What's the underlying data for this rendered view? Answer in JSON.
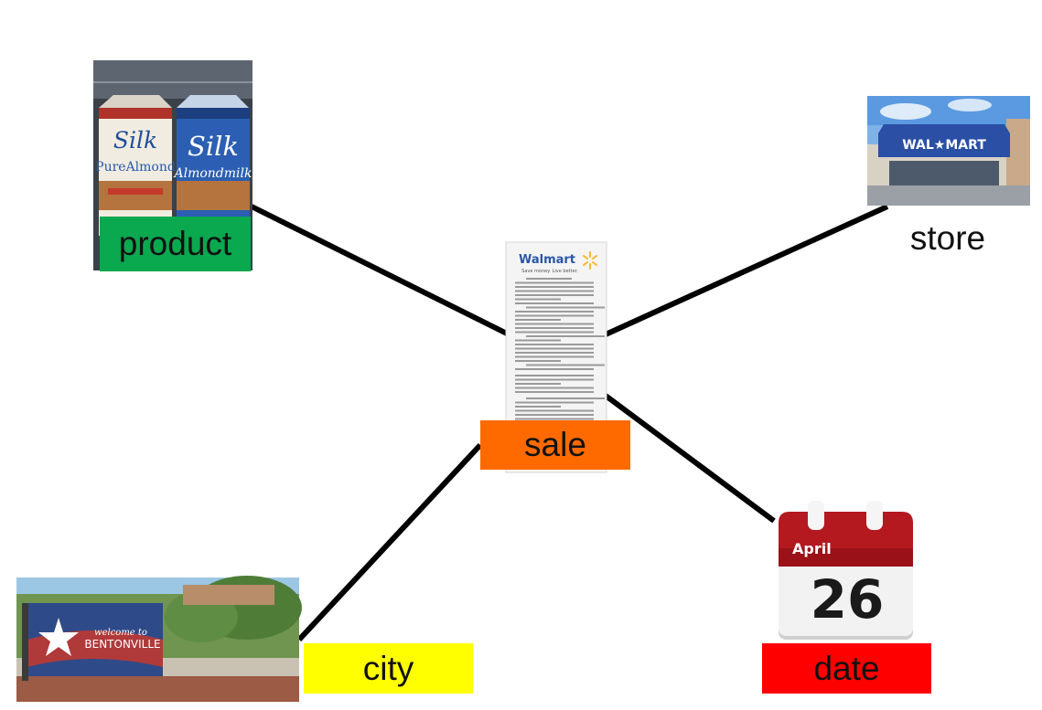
{
  "diagram": {
    "nodes": {
      "product": {
        "label": "product",
        "label_color": "#0aa84f",
        "brand_text_1": "Silk",
        "sub_text_1": "PureAlmond",
        "brand_text_2": "Silk",
        "sub_text_2": "Almondmilk"
      },
      "store": {
        "label": "store",
        "label_color": "#ffffff",
        "sign_text": "WAL★MART"
      },
      "sale": {
        "label": "sale",
        "label_color": "#ff6a00",
        "receipt_brand": "Walmart",
        "receipt_tagline": "Save money. Live better."
      },
      "city": {
        "label": "city",
        "label_color": "#ffff00",
        "sign_welcome": "welcome to",
        "sign_name": "BENTONVILLE"
      },
      "date": {
        "label": "date",
        "label_color": "#ff0000",
        "month": "April",
        "day": "26"
      }
    },
    "edges": [
      {
        "from": "sale",
        "to": "product"
      },
      {
        "from": "sale",
        "to": "store"
      },
      {
        "from": "sale",
        "to": "city"
      },
      {
        "from": "sale",
        "to": "date"
      }
    ]
  }
}
